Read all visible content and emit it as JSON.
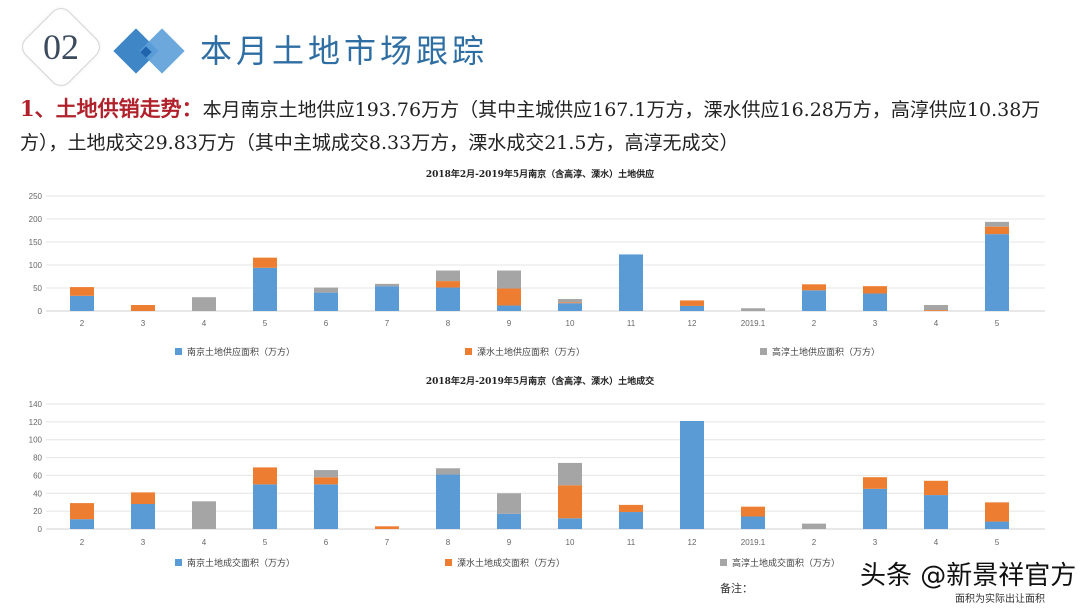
{
  "header": {
    "section_number": "02",
    "title": "本月土地市场跟踪",
    "accent_color": "#2f6ea3"
  },
  "summary": {
    "lead": "1、土地供销走势：",
    "text": "本月南京土地供应193.76万方（其中主城供应167.1万方，溧水供应16.28万方，高淳供应10.38万方），土地成交29.83万方（其中主城成交8.33万方，溧水成交21.5方，高淳无成交）"
  },
  "chart_data": [
    {
      "type": "bar",
      "stacked": true,
      "title": "2018年2月-2019年5月南京（含高淳、溧水）土地供应",
      "categories": [
        "2",
        "3",
        "4",
        "5",
        "6",
        "7",
        "8",
        "9",
        "10",
        "11",
        "12",
        "2019.1",
        "2",
        "3",
        "4",
        "5"
      ],
      "ylim": [
        0,
        250
      ],
      "yticks": [
        0,
        50,
        100,
        150,
        200,
        250
      ],
      "grid": true,
      "legend_position": "bottom",
      "series": [
        {
          "name": "南京土地供应面积（万方）",
          "color": "#5b9bd5",
          "values": [
            33,
            0,
            0,
            94,
            40,
            54,
            51,
            12,
            17,
            123,
            11,
            0,
            45,
            38,
            0,
            167.1
          ]
        },
        {
          "name": "溧水土地供应面积（万方）",
          "color": "#ed7d31",
          "values": [
            19,
            13,
            0,
            22,
            0,
            0,
            14,
            37,
            2,
            0,
            12,
            0,
            13,
            16,
            2,
            16.28
          ]
        },
        {
          "name": "高淳土地供应面积（万方）",
          "color": "#a5a5a5",
          "values": [
            0,
            0,
            30,
            0,
            11,
            5,
            23,
            39,
            7,
            0,
            0,
            6,
            0,
            0,
            11,
            10.38
          ]
        }
      ]
    },
    {
      "type": "bar",
      "stacked": true,
      "title": "2018年2月-2019年5月南京（含高淳、溧水）土地成交",
      "categories": [
        "2",
        "3",
        "4",
        "5",
        "6",
        "7",
        "8",
        "9",
        "10",
        "11",
        "12",
        "2019.1",
        "2",
        "3",
        "4",
        "5"
      ],
      "ylim": [
        0,
        140
      ],
      "yticks": [
        0,
        20,
        40,
        60,
        80,
        100,
        120,
        140
      ],
      "grid": true,
      "legend_position": "bottom",
      "series": [
        {
          "name": "南京土地成交面积（万方）",
          "color": "#5b9bd5",
          "values": [
            11,
            28,
            0,
            50,
            50,
            0,
            61,
            17,
            12,
            19,
            121,
            14,
            0,
            45,
            38,
            8.33
          ]
        },
        {
          "name": "溧水土地成交面积（万方）",
          "color": "#ed7d31",
          "values": [
            18,
            13,
            0,
            19,
            8,
            3,
            0,
            0,
            37,
            8,
            0,
            11,
            0,
            13,
            16,
            21.5
          ]
        },
        {
          "name": "高淳土地成交面积（万方）",
          "color": "#a5a5a5",
          "values": [
            0,
            0,
            31,
            0,
            8,
            0,
            7,
            23,
            25,
            0,
            0,
            0,
            6,
            0,
            0,
            0
          ]
        }
      ]
    }
  ],
  "footnote": {
    "note_prefix": "备注：",
    "note_tail": "面积为实际出让面积",
    "watermark": "头条 @新景祥官方"
  }
}
